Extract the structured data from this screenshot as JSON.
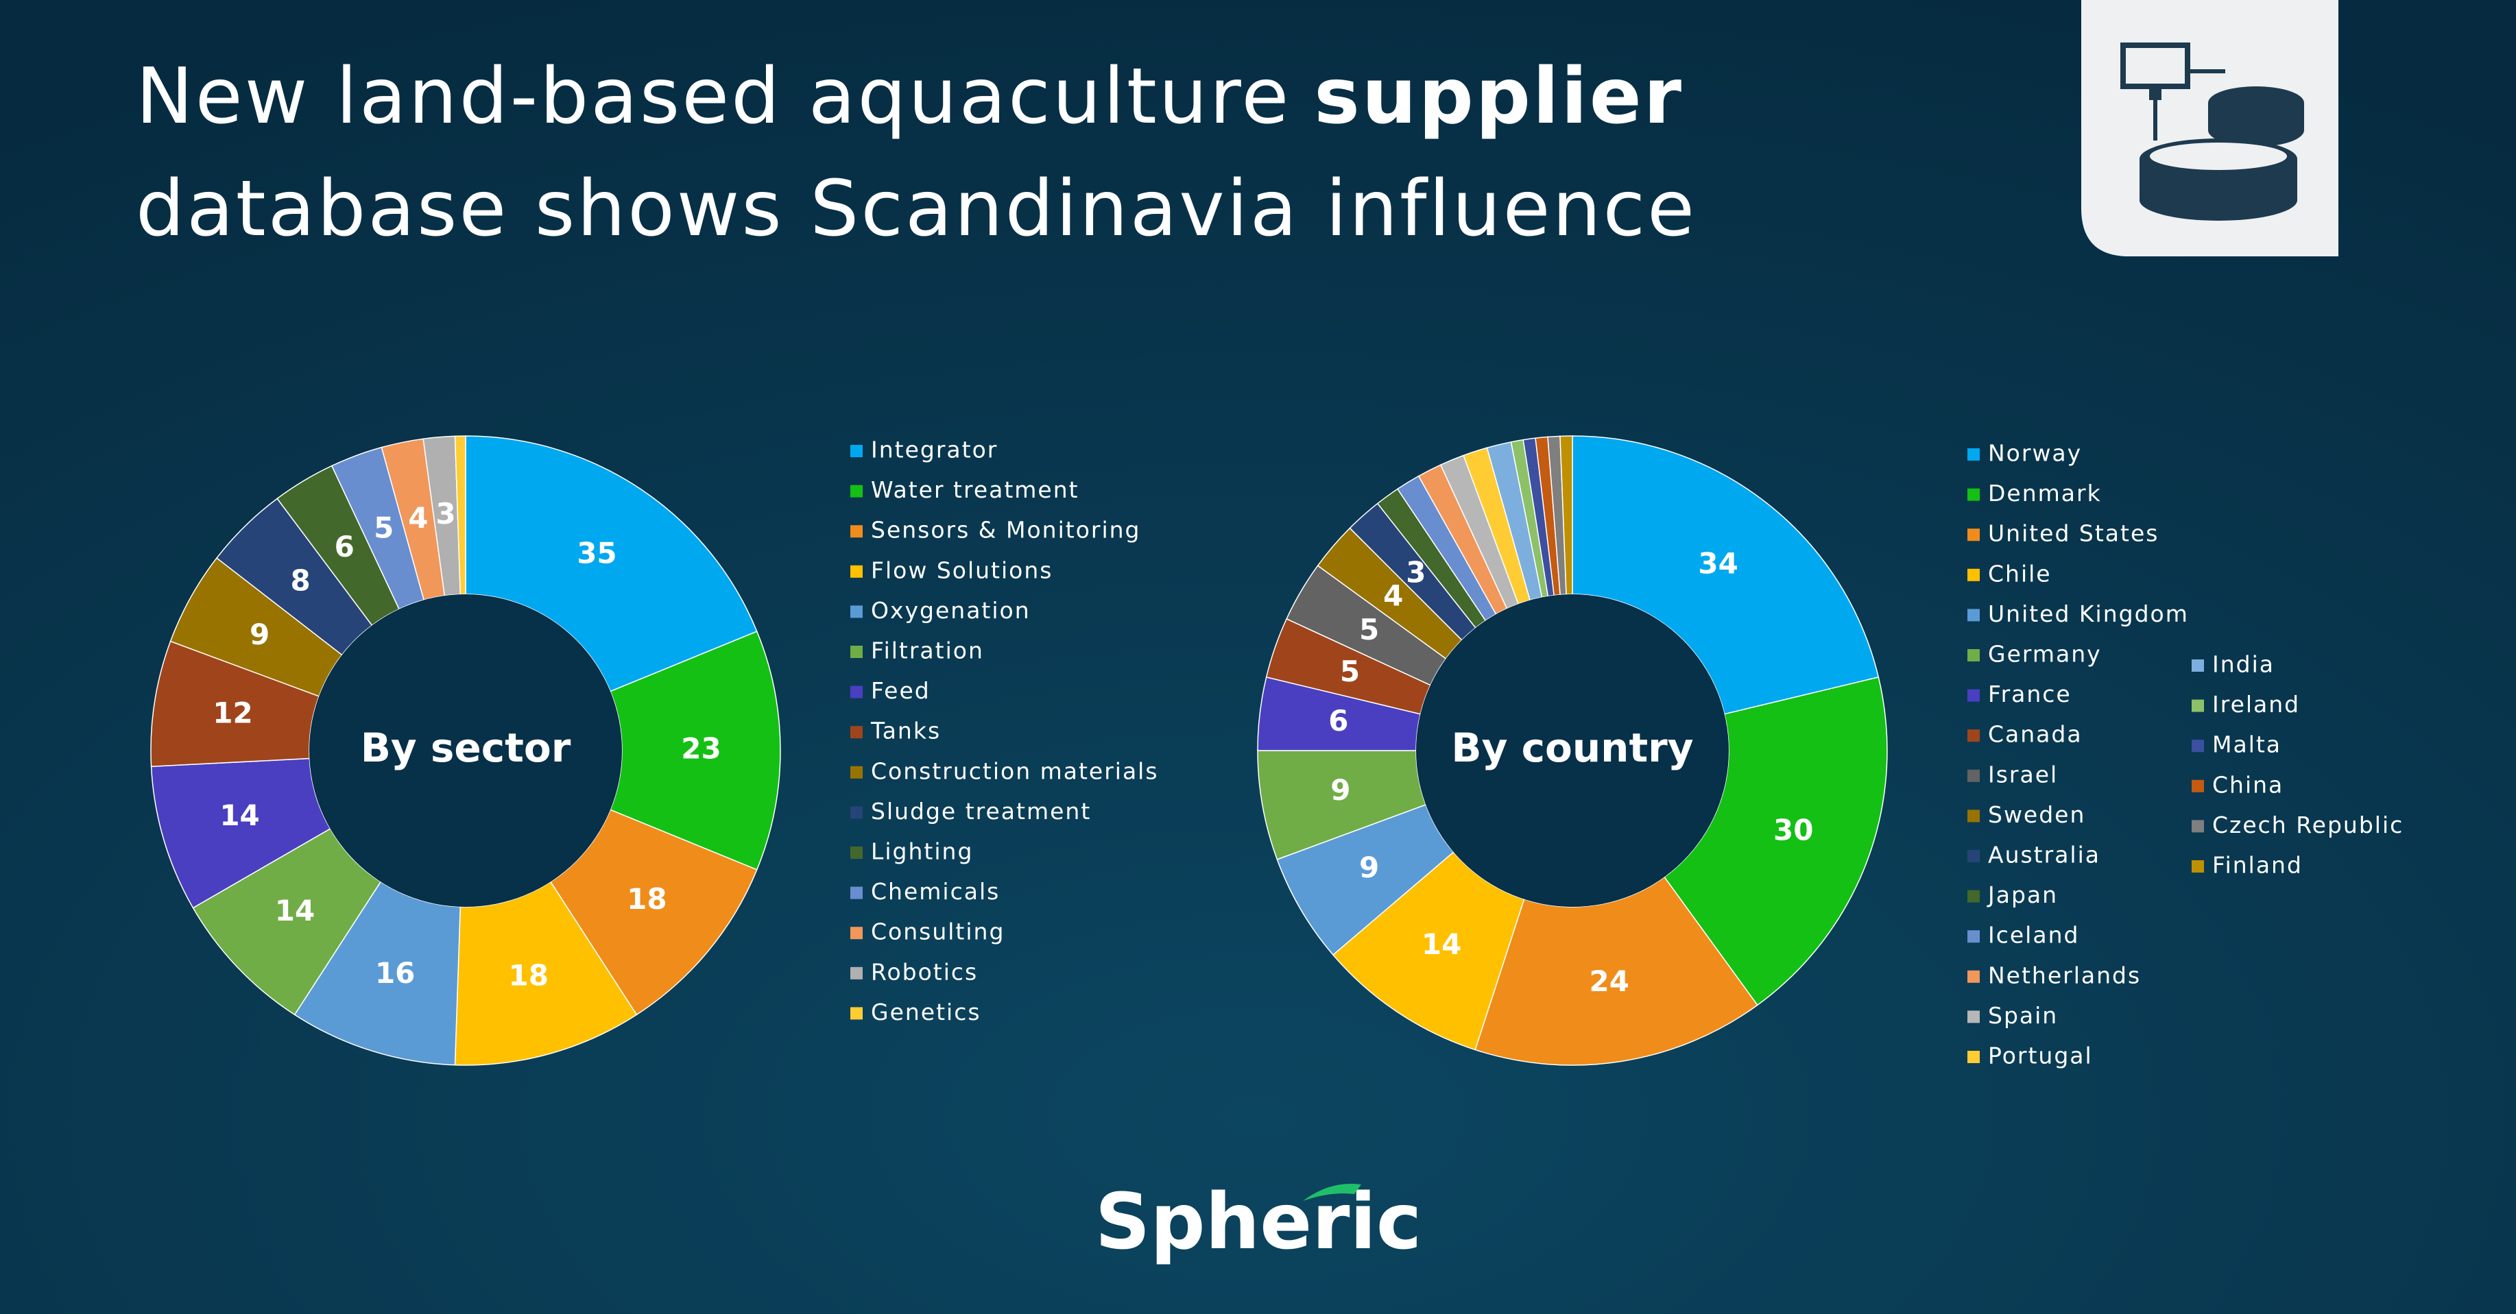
{
  "title_parts": [
    "New land-based aquaculture",
    "supplier",
    "database shows Scandinavia influence"
  ],
  "logo": "Spheric",
  "chart_data": [
    {
      "type": "donut",
      "center_label": "By sector",
      "categories": [
        "Integrator",
        "Water treatment",
        "Sensors & Monitoring",
        "Flow Solutions",
        "Oxygenation",
        "Filtration",
        "Feed",
        "Tanks",
        "Construction materials",
        "Sludge treatment",
        "Lighting",
        "Chemicals",
        "Consulting",
        "Robotics",
        "Genetics"
      ],
      "values": [
        35,
        23,
        18,
        18,
        16,
        14,
        14,
        12,
        9,
        8,
        6,
        5,
        4,
        3,
        1
      ],
      "colors": [
        "#00a8f0",
        "#14c014",
        "#f08c1a",
        "#ffc000",
        "#5b9bd5",
        "#70ad47",
        "#4a3fc0",
        "#a0451b",
        "#997300",
        "#264478",
        "#43682b",
        "#698ed0",
        "#f1975a",
        "#b0b0b0",
        "#ffcd33"
      ]
    },
    {
      "type": "donut",
      "center_label": "By country",
      "categories": [
        "Norway",
        "Denmark",
        "United States",
        "Chile",
        "United Kingdom",
        "Germany",
        "France",
        "Canada",
        "Israel",
        "Sweden",
        "Australia",
        "Japan",
        "Iceland",
        "Netherlands",
        "Spain",
        "Portugal",
        "India",
        "Ireland",
        "Malta",
        "China",
        "Czech Republic",
        "Finland"
      ],
      "values": [
        34,
        30,
        24,
        14,
        9,
        9,
        6,
        5,
        5,
        4,
        3,
        2,
        2,
        2,
        2,
        2,
        2,
        1,
        1,
        1,
        1,
        1
      ],
      "colors": [
        "#00a8f0",
        "#14c014",
        "#f08c1a",
        "#ffc000",
        "#5b9bd5",
        "#70ad47",
        "#4a3fc0",
        "#a0451b",
        "#636363",
        "#997300",
        "#264478",
        "#43682b",
        "#698ed0",
        "#f1975a",
        "#b7b7b7",
        "#ffcd33",
        "#7cafdd",
        "#8cc168",
        "#3c4fa0",
        "#c55a11",
        "#7f7f7f",
        "#bf9000"
      ]
    }
  ]
}
